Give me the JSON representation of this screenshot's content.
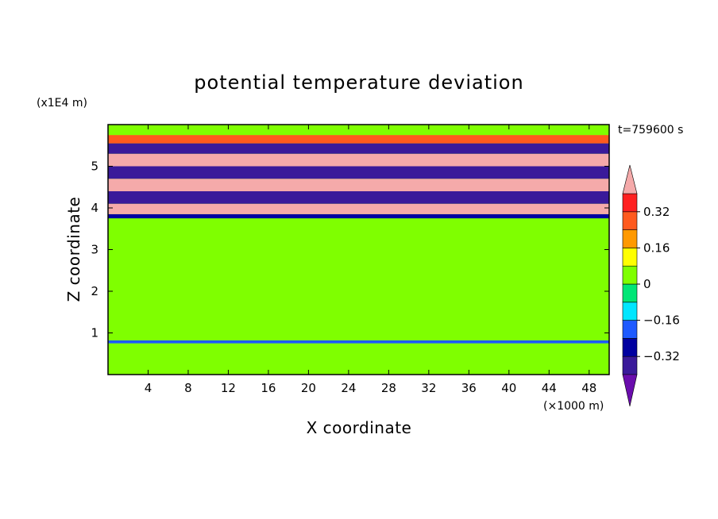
{
  "chart_data": {
    "type": "heatmap",
    "title": "potential temperature deviation",
    "xlabel": "X coordinate",
    "ylabel": "Z coordinate",
    "x_unit": "(×1000 m)",
    "y_unit": "(x1E4 m)",
    "time_label": "t=759600 s",
    "xlim": [
      0,
      50
    ],
    "ylim": [
      0,
      6
    ],
    "x_ticks": [
      4,
      8,
      12,
      16,
      20,
      24,
      28,
      32,
      36,
      40,
      44,
      48
    ],
    "y_ticks": [
      1,
      2,
      3,
      4,
      5
    ],
    "colorbar": {
      "levels": [
        -0.4,
        -0.32,
        -0.24,
        -0.16,
        -0.08,
        0,
        0.08,
        0.16,
        0.24,
        0.32,
        0.4
      ],
      "tick_labels": [
        "0.32",
        "0.16",
        "0",
        "−0.16",
        "−0.32"
      ],
      "tick_values": [
        0.32,
        0.16,
        0,
        -0.16,
        -0.32
      ],
      "colors": [
        "#6a0dad",
        "#3a1a9a",
        "#0000a0",
        "#1e5aff",
        "#00e6ff",
        "#00e676",
        "#7fff00",
        "#ffff00",
        "#ff9900",
        "#ff5a1e",
        "#ff2020",
        "#f5aaaa"
      ],
      "extend": "both"
    },
    "bands": [
      {
        "z": [
          0.0,
          0.75
        ],
        "value": 0.02
      },
      {
        "z": [
          0.75,
          0.82
        ],
        "value": -0.2
      },
      {
        "z": [
          0.82,
          3.5
        ],
        "value": 0.05
      },
      {
        "z": [
          3.5,
          3.75
        ],
        "value": 0.0
      },
      {
        "z": [
          3.75,
          3.85
        ],
        "value": -0.25
      },
      {
        "z": [
          3.85,
          4.1
        ],
        "value": 0.4
      },
      {
        "z": [
          4.1,
          4.4
        ],
        "value": -0.4
      },
      {
        "z": [
          4.4,
          4.7
        ],
        "value": 0.4
      },
      {
        "z": [
          4.7,
          5.0
        ],
        "value": -0.4
      },
      {
        "z": [
          5.0,
          5.3
        ],
        "value": 0.4
      },
      {
        "z": [
          5.3,
          5.55
        ],
        "value": -0.4
      },
      {
        "z": [
          5.55,
          5.75
        ],
        "value": 0.3
      },
      {
        "z": [
          5.75,
          6.0
        ],
        "value": 0.05
      }
    ]
  }
}
